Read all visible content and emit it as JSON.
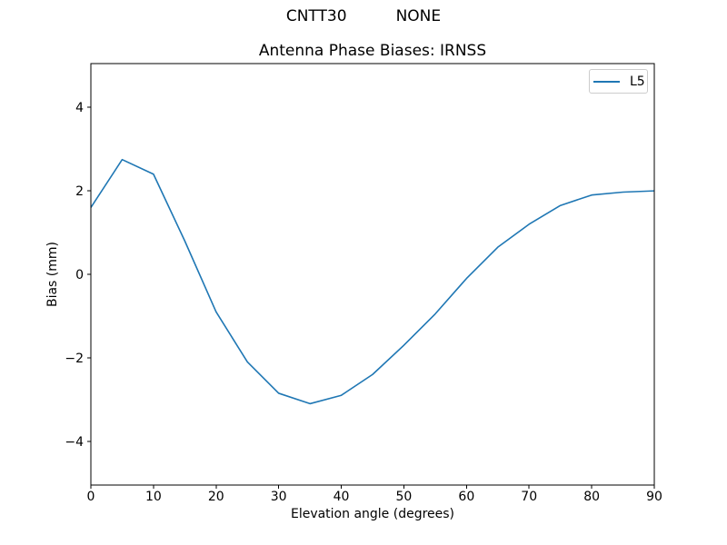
{
  "figure": {
    "suptitle": "CNTT30          NONE",
    "background": "#ffffff"
  },
  "chart_data": {
    "type": "line",
    "title": "Antenna Phase Biases: IRNSS",
    "xlabel": "Elevation angle (degrees)",
    "ylabel": "Bias (mm)",
    "xlim": [
      0,
      90
    ],
    "ylim": [
      -5.05,
      5.05
    ],
    "xticks": [
      0,
      10,
      20,
      30,
      40,
      50,
      60,
      70,
      80,
      90
    ],
    "yticks": [
      -4,
      -2,
      0,
      2,
      4
    ],
    "grid": false,
    "axes_color": "#000000",
    "legend": {
      "position": "upper right",
      "border_color": "#cccccc",
      "entries": [
        {
          "label": "L5",
          "color": "#1f77b4"
        }
      ]
    },
    "series": [
      {
        "name": "L5",
        "color": "#1f77b4",
        "x": [
          0,
          5,
          10,
          15,
          20,
          25,
          30,
          35,
          40,
          45,
          50,
          55,
          60,
          65,
          70,
          75,
          80,
          85,
          90
        ],
        "y": [
          1.6,
          2.75,
          2.4,
          0.8,
          -0.9,
          -2.1,
          -2.85,
          -3.1,
          -2.9,
          -2.4,
          -1.7,
          -0.95,
          -0.1,
          0.65,
          1.2,
          1.65,
          1.9,
          1.97,
          2.0
        ]
      }
    ]
  }
}
